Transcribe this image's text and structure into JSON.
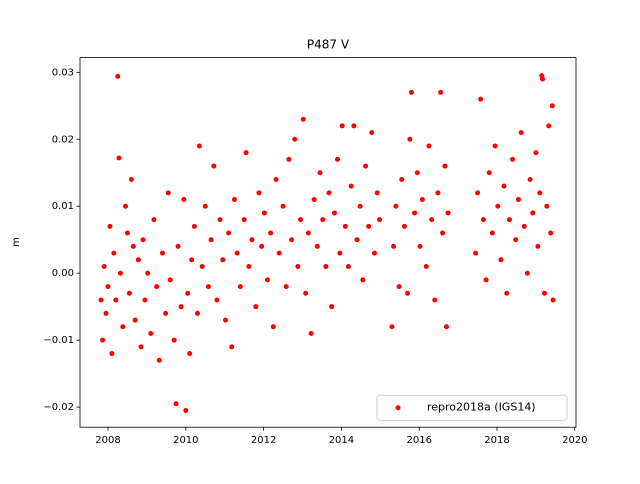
{
  "chart_data": {
    "type": "scatter",
    "title": "P487 V",
    "ylabel": "m",
    "x": [
      2007.82,
      2007.86,
      2007.9,
      2007.95,
      2008.0,
      2008.05,
      2008.1,
      2008.15,
      2008.2,
      2008.25,
      2008.28,
      2008.32,
      2008.38,
      2008.45,
      2008.5,
      2008.55,
      2008.6,
      2008.65,
      2008.7,
      2008.78,
      2008.85,
      2008.9,
      2008.95,
      2009.02,
      2009.1,
      2009.18,
      2009.25,
      2009.32,
      2009.4,
      2009.48,
      2009.55,
      2009.6,
      2009.7,
      2009.75,
      2009.8,
      2009.88,
      2009.95,
      2010.0,
      2010.05,
      2010.1,
      2010.15,
      2010.22,
      2010.3,
      2010.35,
      2010.42,
      2010.5,
      2010.58,
      2010.65,
      2010.72,
      2010.8,
      2010.88,
      2010.95,
      2011.02,
      2011.1,
      2011.18,
      2011.25,
      2011.32,
      2011.4,
      2011.5,
      2011.55,
      2011.62,
      2011.7,
      2011.8,
      2011.88,
      2011.95,
      2012.02,
      2012.1,
      2012.18,
      2012.25,
      2012.32,
      2012.4,
      2012.5,
      2012.58,
      2012.65,
      2012.72,
      2012.8,
      2012.88,
      2012.95,
      2013.02,
      2013.08,
      2013.15,
      2013.22,
      2013.3,
      2013.38,
      2013.45,
      2013.52,
      2013.6,
      2013.68,
      2013.75,
      2013.82,
      2013.9,
      2013.96,
      2014.02,
      2014.1,
      2014.18,
      2014.25,
      2014.32,
      2014.4,
      2014.48,
      2014.55,
      2014.62,
      2014.7,
      2014.78,
      2014.85,
      2014.92,
      2014.98,
      2015.3,
      2015.34,
      2015.4,
      2015.48,
      2015.55,
      2015.62,
      2015.7,
      2015.76,
      2015.8,
      2015.88,
      2015.95,
      2016.02,
      2016.08,
      2016.18,
      2016.25,
      2016.32,
      2016.4,
      2016.48,
      2016.55,
      2016.6,
      2016.66,
      2016.7,
      2016.74,
      2017.45,
      2017.5,
      2017.58,
      2017.65,
      2017.72,
      2017.8,
      2017.88,
      2017.95,
      2018.02,
      2018.1,
      2018.18,
      2018.25,
      2018.32,
      2018.4,
      2018.48,
      2018.55,
      2018.62,
      2018.7,
      2018.78,
      2018.85,
      2018.92,
      2019.0,
      2019.05,
      2019.1,
      2019.15,
      2019.17,
      2019.22,
      2019.28,
      2019.33,
      2019.38,
      2019.42,
      2019.44
    ],
    "series": [
      {
        "name": "repro2018a (IGS14)",
        "color": "#ff0000",
        "values": [
          -0.004,
          -0.01,
          0.001,
          -0.006,
          -0.002,
          0.007,
          -0.012,
          0.003,
          -0.004,
          0.0294,
          0.0172,
          0.0,
          -0.008,
          0.01,
          0.006,
          -0.003,
          0.014,
          0.004,
          -0.007,
          0.002,
          -0.011,
          0.005,
          -0.004,
          0.0,
          -0.009,
          0.008,
          -0.002,
          -0.013,
          0.003,
          -0.006,
          0.012,
          -0.001,
          -0.01,
          -0.0195,
          0.004,
          -0.005,
          0.011,
          -0.0205,
          -0.003,
          -0.012,
          0.002,
          0.007,
          -0.006,
          0.019,
          0.001,
          0.01,
          -0.002,
          0.005,
          0.016,
          -0.004,
          0.008,
          0.002,
          -0.007,
          0.006,
          -0.011,
          0.011,
          0.003,
          -0.002,
          0.008,
          0.018,
          0.001,
          0.005,
          -0.005,
          0.012,
          0.004,
          0.009,
          -0.001,
          0.006,
          -0.008,
          0.014,
          0.003,
          0.01,
          -0.002,
          0.017,
          0.005,
          0.02,
          0.001,
          0.008,
          0.023,
          -0.003,
          0.006,
          -0.009,
          0.011,
          0.004,
          0.015,
          0.008,
          0.001,
          0.012,
          -0.005,
          0.009,
          0.017,
          0.003,
          0.022,
          0.007,
          0.001,
          0.013,
          0.022,
          0.005,
          0.01,
          -0.001,
          0.016,
          0.007,
          0.021,
          0.003,
          0.012,
          0.008,
          -0.008,
          0.004,
          0.01,
          -0.002,
          0.014,
          0.007,
          -0.003,
          0.02,
          0.027,
          0.009,
          0.015,
          0.004,
          0.011,
          0.001,
          0.019,
          0.008,
          -0.004,
          0.012,
          0.027,
          0.006,
          0.016,
          -0.008,
          0.009,
          0.003,
          0.012,
          0.026,
          0.008,
          -0.001,
          0.015,
          0.006,
          0.019,
          0.01,
          0.002,
          0.013,
          -0.003,
          0.008,
          0.017,
          0.005,
          0.011,
          0.021,
          0.007,
          0.0,
          0.014,
          0.009,
          0.018,
          0.004,
          0.012,
          0.0295,
          0.029,
          -0.003,
          0.01,
          0.022,
          0.006,
          0.025,
          -0.004
        ]
      }
    ],
    "xlim": [
      2007.28,
      2020.03
    ],
    "ylim": [
      -0.023,
      0.0322
    ],
    "xticks": [
      2008,
      2010,
      2012,
      2014,
      2016,
      2018,
      2020
    ],
    "yticks": [
      {
        "value": -0.02,
        "label": "−0.02"
      },
      {
        "value": -0.01,
        "label": "−0.01"
      },
      {
        "value": 0,
        "label": "0.00"
      },
      0.01,
      0.02,
      0.03
    ],
    "grid": false,
    "legend": "lower right"
  }
}
